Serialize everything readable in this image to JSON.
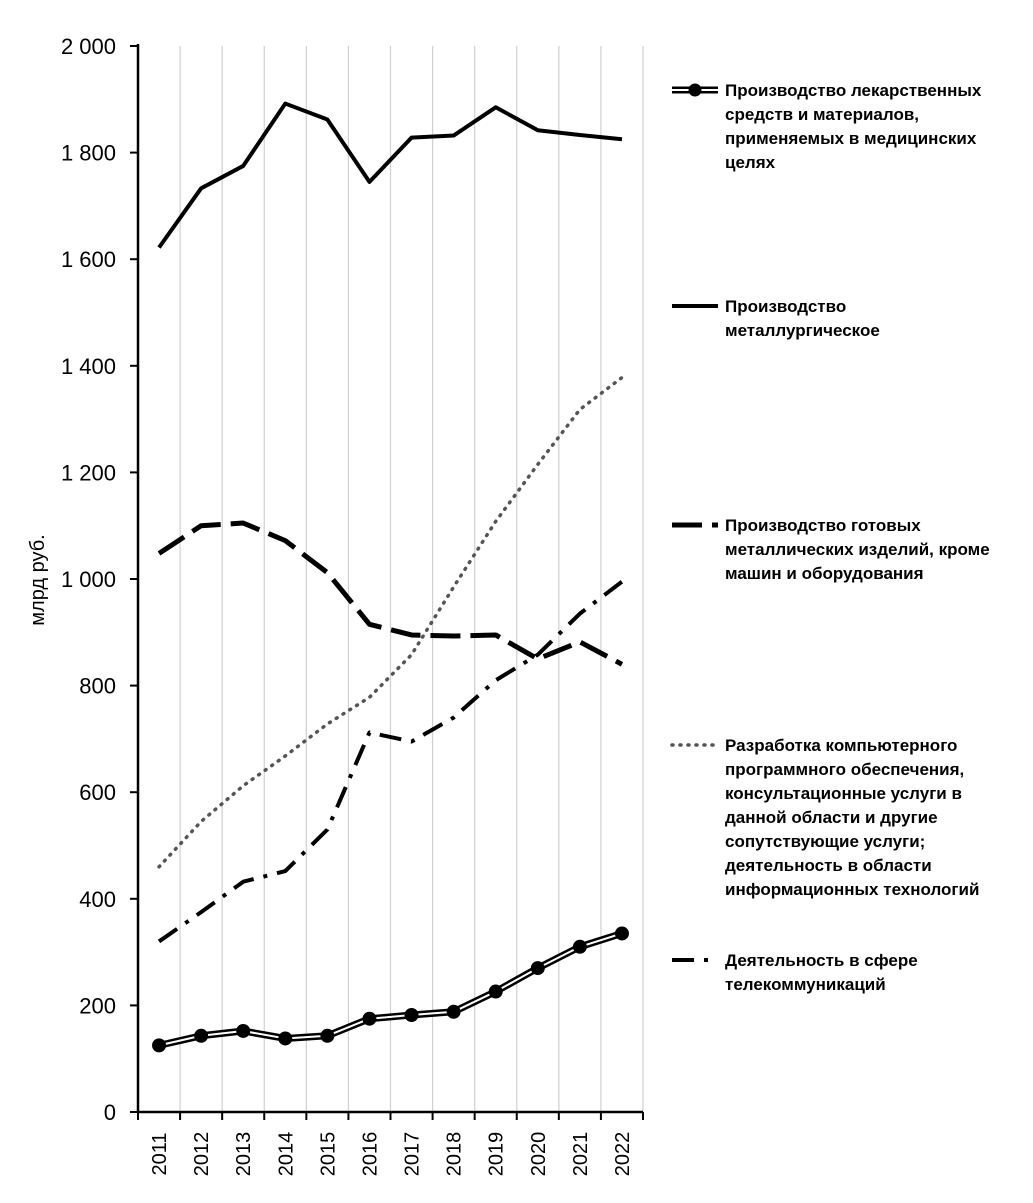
{
  "chart_data": {
    "type": "line",
    "title": "",
    "xlabel": "",
    "ylabel": "млрд руб.",
    "ylim": [
      0,
      2000
    ],
    "yticks": [
      0,
      200,
      400,
      600,
      800,
      1000,
      1200,
      1400,
      1600,
      1800,
      2000
    ],
    "ytick_labels": [
      "0",
      "200",
      "400",
      "600",
      "800",
      "1 000",
      "1 200",
      "1 400",
      "1 600",
      "1 800",
      "2 000"
    ],
    "grid": "vertical",
    "legend_position": "right",
    "categories": [
      "2011",
      "2012",
      "2013",
      "2014",
      "2015",
      "2016",
      "2017",
      "2018",
      "2019",
      "2020",
      "2021",
      "2022"
    ],
    "series": [
      {
        "name": "Производство лекарственных средств и материалов, применяемых в медицинских целях",
        "legend_lines": [
          "Производство лекарственных",
          "средств и материалов,",
          "применяемых в медицинских",
          "целях"
        ],
        "style": "double-marker",
        "color": "#000000",
        "values": [
          125,
          143,
          152,
          138,
          143,
          175,
          182,
          188,
          226,
          270,
          310,
          335
        ]
      },
      {
        "name": "Производство металлургическое",
        "legend_lines": [
          "Производство",
          "металлургическое"
        ],
        "style": "solid",
        "color": "#000000",
        "values": [
          1622,
          1733,
          1775,
          1892,
          1862,
          1745,
          1828,
          1832,
          1885,
          1842,
          1833,
          1825
        ]
      },
      {
        "name": "Производство готовых металлических изделий, кроме машин и оборудования",
        "legend_lines": [
          "Производство готовых",
          "металлических изделий, кроме",
          "машин и оборудования"
        ],
        "style": "dashed",
        "color": "#000000",
        "values": [
          1048,
          1100,
          1105,
          1072,
          1012,
          915,
          895,
          893,
          895,
          850,
          882,
          840
        ]
      },
      {
        "name": "Разработка компьютерного программного обеспечения, консультационные услуги в данной области и другие сопутствующие услуги; деятельность в области информационных технологий",
        "legend_lines": [
          "Разработка компьютерного",
          "программного обеспечения,",
          "консультационные услуги в",
          "данной области и другие",
          "сопутствующие услуги;",
          "деятельность в области",
          "информационных технологий"
        ],
        "style": "dotted",
        "color": "#555555",
        "values": [
          460,
          545,
          612,
          668,
          728,
          778,
          858,
          985,
          1108,
          1215,
          1318,
          1378
        ]
      },
      {
        "name": "Деятельность в сфере телекоммуникаций",
        "legend_lines": [
          "Деятельность в сфере",
          "телекоммуникаций"
        ],
        "style": "dash-dot",
        "color": "#000000",
        "values": [
          320,
          375,
          432,
          452,
          530,
          712,
          695,
          740,
          810,
          858,
          935,
          995
        ]
      }
    ]
  }
}
